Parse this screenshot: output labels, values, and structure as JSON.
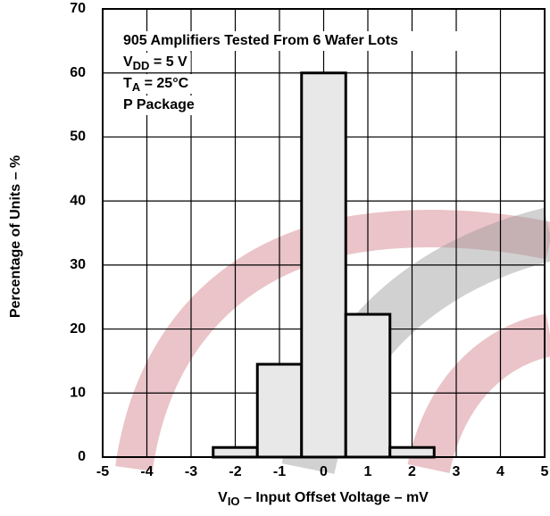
{
  "chart_data": {
    "type": "histogram",
    "bins": [
      -2.5,
      -1.5,
      -0.5,
      0.5,
      1.5,
      2.5
    ],
    "values": [
      1.5,
      14.5,
      60,
      22.3,
      1.5
    ],
    "color": "#e8e8e8",
    "xlim": [
      -5,
      5
    ],
    "xticks": [
      -5,
      -4,
      -3,
      -2,
      -1,
      0,
      1,
      2,
      3,
      4,
      5
    ],
    "ylim": [
      0,
      70
    ],
    "yticks": [
      0,
      10,
      20,
      30,
      40,
      50,
      60,
      70
    ],
    "grid": true,
    "xlabel": [
      "V",
      "IO",
      " – Input Offset Voltage – mV"
    ],
    "ylabel": "Percentage of Units – %",
    "annotations": [
      "905 Amplifiers Tested From 6 Wafer Lots",
      [
        "V",
        "DD",
        " = 5 V"
      ],
      [
        "T",
        "A",
        " = 25°C"
      ],
      "P Package"
    ]
  }
}
